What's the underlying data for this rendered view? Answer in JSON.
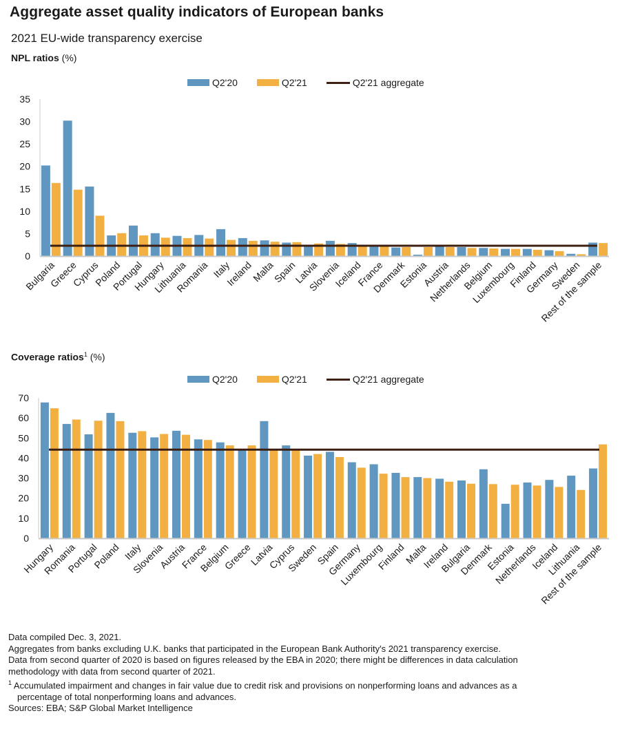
{
  "header": {
    "title": "Aggregate asset quality indicators of European banks",
    "subtitle": "2021 EU-wide transparency exercise"
  },
  "colors": {
    "q2_20": "#5f97c0",
    "q2_21": "#f2b042",
    "aggregate": "#3d1f12",
    "axis": "#c8c8c8"
  },
  "chart_data": [
    {
      "type": "bar",
      "title": "NPL ratios",
      "title_unit": "(%)",
      "xlabel": "",
      "ylabel": "",
      "ylim": [
        0,
        35
      ],
      "yticks": [
        0,
        5,
        10,
        15,
        20,
        25,
        30,
        35
      ],
      "grid": false,
      "legend_position": "top-center",
      "legend": [
        "Q2'20",
        "Q2'21",
        "Q2'21 aggregate"
      ],
      "categories": [
        "Bulgaria",
        "Greece",
        "Cyprus",
        "Poland",
        "Portugal",
        "Hungary",
        "Lithuania",
        "Romania",
        "Italy",
        "Ireland",
        "Malta",
        "Spain",
        "Latvia",
        "Slovenia",
        "Iceland",
        "France",
        "Denmark",
        "Estonia",
        "Austria",
        "Netherlands",
        "Belgium",
        "Luxembourg",
        "Finland",
        "Germany",
        "Sweden",
        "Rest of the sample"
      ],
      "series": [
        {
          "name": "Q2'20",
          "values": [
            20.2,
            30.2,
            15.5,
            4.6,
            6.8,
            5.1,
            4.5,
            4.7,
            6.0,
            4.0,
            3.5,
            3.0,
            2.4,
            3.4,
            2.9,
            2.3,
            1.9,
            0.3,
            2.2,
            2.0,
            1.8,
            1.6,
            1.6,
            1.3,
            0.5,
            3.0
          ]
        },
        {
          "name": "Q2'21",
          "values": [
            16.3,
            14.8,
            9.0,
            5.1,
            4.6,
            4.1,
            4.0,
            3.9,
            3.6,
            3.4,
            3.2,
            3.1,
            2.8,
            2.7,
            2.2,
            2.1,
            2.0,
            2.0,
            2.0,
            1.8,
            1.7,
            1.6,
            1.4,
            1.1,
            0.4,
            2.9
          ]
        }
      ],
      "aggregate": {
        "name": "Q2'21 aggregate",
        "value": 2.3
      }
    },
    {
      "type": "bar",
      "title": "Coverage ratios",
      "title_sup": "1",
      "title_unit": "(%)",
      "xlabel": "",
      "ylabel": "",
      "ylim": [
        0,
        70
      ],
      "yticks": [
        0,
        10,
        20,
        30,
        40,
        50,
        60,
        70
      ],
      "grid": false,
      "legend_position": "top-center",
      "legend": [
        "Q2'20",
        "Q2'21",
        "Q2'21 aggregate"
      ],
      "categories": [
        "Hungary",
        "Romania",
        "Portugal",
        "Poland",
        "Italy",
        "Slovenia",
        "Austria",
        "France",
        "Belgium",
        "Greece",
        "Latvia",
        "Cyprus",
        "Sweden",
        "Spain",
        "Germany",
        "Luxembourg",
        "Finland",
        "Malta",
        "Ireland",
        "Bulgaria",
        "Denmark",
        "Estonia",
        "Netherlands",
        "Iceland",
        "Lithuania",
        "Rest of the sample"
      ],
      "series": [
        {
          "name": "Q2'20",
          "values": [
            67.7,
            57.0,
            51.8,
            62.5,
            52.6,
            50.3,
            53.6,
            49.3,
            47.8,
            44.2,
            58.4,
            46.3,
            41.2,
            43.1,
            37.9,
            36.9,
            32.6,
            30.5,
            29.7,
            28.8,
            34.4,
            17.2,
            27.8,
            29.1,
            31.2,
            34.8
          ]
        },
        {
          "name": "Q2'21",
          "values": [
            64.8,
            59.2,
            58.6,
            58.4,
            53.4,
            52.0,
            51.6,
            49.0,
            46.3,
            46.3,
            44.6,
            44.2,
            42.0,
            40.5,
            35.2,
            32.2,
            30.5,
            30.0,
            28.2,
            27.2,
            27.0,
            26.7,
            26.3,
            25.6,
            24.1,
            46.8
          ]
        }
      ],
      "aggregate": {
        "name": "Q2'21 aggregate",
        "value": 44.2
      }
    }
  ],
  "notes": {
    "compiled": "Data compiled Dec. 3, 2021.",
    "aggregates": "Aggregates from banks excluding U.K. banks that participated in the European Bank Authority's 2021 transparency exercise.",
    "methodology_1": "Data from second quarter of 2020 is based on figures released by the EBA in 2020; there might be differences in data calculation",
    "methodology_2": "methodology with data from second quarter of 2021.",
    "footnote_marker": "1",
    "footnote_1": "Accumulated impairment and changes in fair value due to credit risk and provisions on nonperforming loans and advances as a",
    "footnote_2": "percentage of total nonperforming loans and advances.",
    "sources": "Sources: EBA; S&P Global Market Intelligence"
  }
}
